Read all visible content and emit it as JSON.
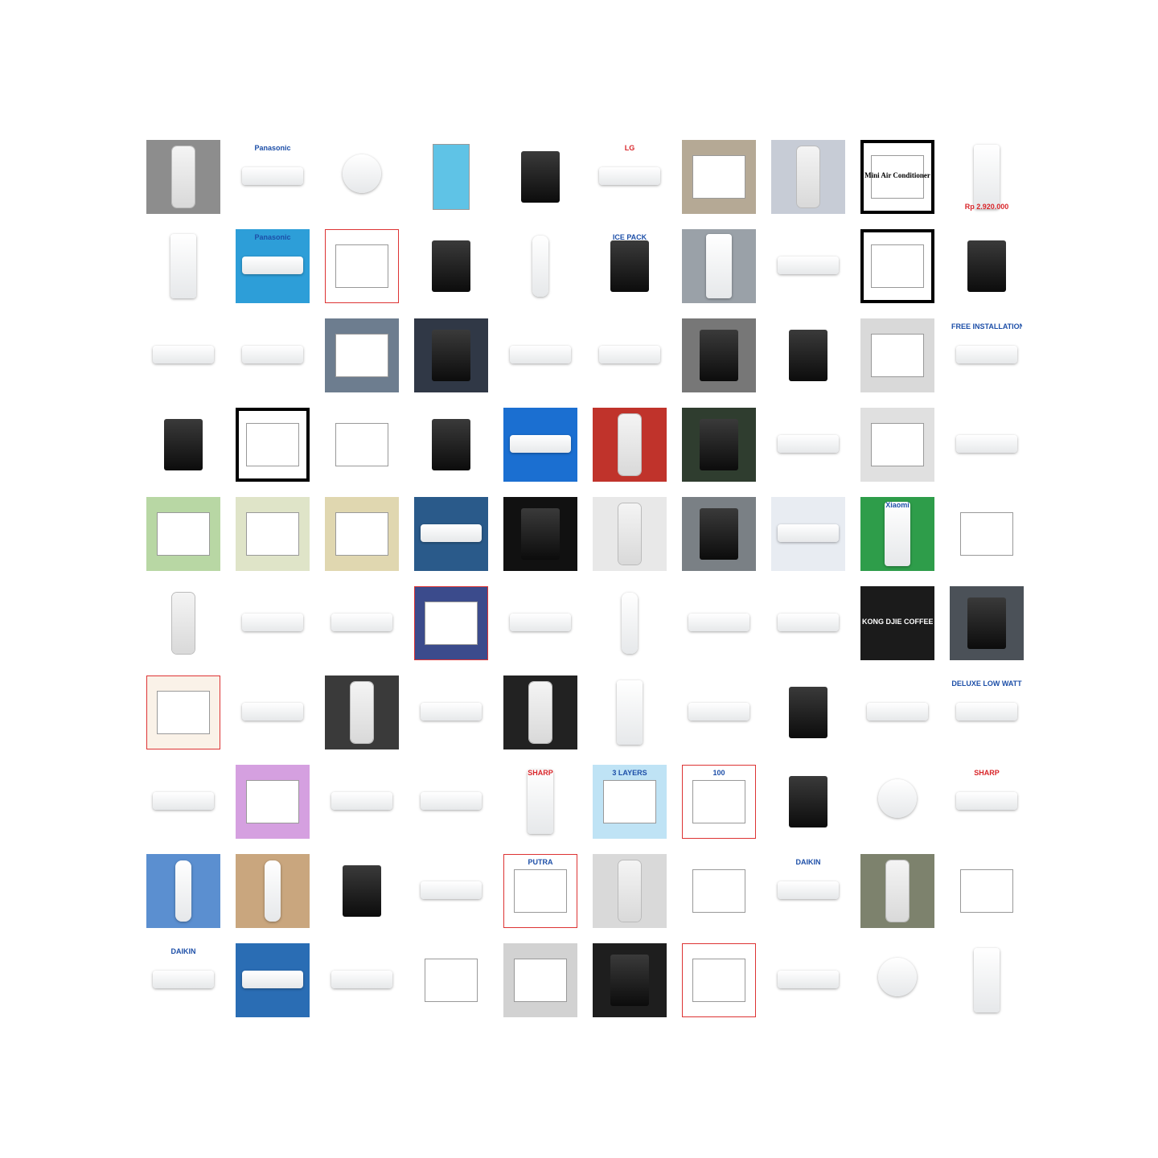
{
  "grid": {
    "rows": [
      {
        "cells": [
          {
            "name": "ac-remote",
            "bg": "#8d8d8d",
            "kind": "remote",
            "text": ""
          },
          {
            "name": "panasonic-ac",
            "bg": "#ffffff",
            "kind": "ac",
            "text": "Panasonic"
          },
          {
            "name": "handheld-fan",
            "bg": "#ffffff",
            "kind": "round",
            "text": ""
          },
          {
            "name": "mosquito-lamp",
            "bg": "#ffffff",
            "kind": "tower-blue",
            "text": ""
          },
          {
            "name": "mosquito-trap",
            "bg": "#ffffff",
            "kind": "dark",
            "text": ""
          },
          {
            "name": "lg-ac",
            "bg": "#ffffff",
            "kind": "ac",
            "text": "LG"
          },
          {
            "name": "ac-boxes",
            "bg": "#b5a995",
            "kind": "box",
            "text": ""
          },
          {
            "name": "remote-closeup",
            "bg": "#c7ccd6",
            "kind": "remote",
            "text": ""
          },
          {
            "name": "mini-air-conditioner",
            "bg": "#ffffff",
            "kind": "framed",
            "text": "Mini Air Conditioner"
          },
          {
            "name": "lg-fridge-promo",
            "bg": "#ffffff",
            "kind": "fridge",
            "text": "Rp 2.920.000"
          }
        ]
      },
      {
        "cells": [
          {
            "name": "showcase-fridge",
            "bg": "#ffffff",
            "kind": "tower",
            "text": ""
          },
          {
            "name": "panasonic-ac-2",
            "bg": "#2d9ed8",
            "kind": "ac",
            "text": "Panasonic"
          },
          {
            "name": "ac-spec-sheet",
            "bg": "#ffffff",
            "kind": "doc",
            "text": ""
          },
          {
            "name": "gun-alarm-clock",
            "bg": "#ffffff",
            "kind": "dark",
            "text": ""
          },
          {
            "name": "bottle",
            "bg": "#ffffff",
            "kind": "bottle",
            "text": ""
          },
          {
            "name": "ice-pack-cooler",
            "bg": "#ffffff",
            "kind": "dark",
            "text": "ICE PACK"
          },
          {
            "name": "cabinet",
            "bg": "#9aa1a8",
            "kind": "tower",
            "text": ""
          },
          {
            "name": "ac-unit",
            "bg": "#ffffff",
            "kind": "ac",
            "text": ""
          },
          {
            "name": "air-purifiers",
            "bg": "#ffffff",
            "kind": "framed",
            "text": ""
          },
          {
            "name": "black-fridge",
            "bg": "#ffffff",
            "kind": "dark",
            "text": ""
          }
        ]
      },
      {
        "cells": [
          {
            "name": "ac-unit-2",
            "bg": "#ffffff",
            "kind": "ac",
            "text": ""
          },
          {
            "name": "ac-unit-3",
            "bg": "#ffffff",
            "kind": "ac",
            "text": ""
          },
          {
            "name": "remotes-pack",
            "bg": "#6d7d8f",
            "kind": "box",
            "text": ""
          },
          {
            "name": "ac-parts",
            "bg": "#303846",
            "kind": "dark",
            "text": ""
          },
          {
            "name": "ac-unit-4",
            "bg": "#ffffff",
            "kind": "ac",
            "text": ""
          },
          {
            "name": "ac-design",
            "bg": "#ffffff",
            "kind": "ac",
            "text": ""
          },
          {
            "name": "thermostat",
            "bg": "#777777",
            "kind": "dark",
            "text": ""
          },
          {
            "name": "dispenser",
            "bg": "#ffffff",
            "kind": "dark",
            "text": ""
          },
          {
            "name": "room",
            "bg": "#d9d9d9",
            "kind": "box",
            "text": ""
          },
          {
            "name": "free-installation",
            "bg": "#ffffff",
            "kind": "ac",
            "text": "FREE INSTALLATION"
          }
        ]
      },
      {
        "cells": [
          {
            "name": "battery-charger",
            "bg": "#ffffff",
            "kind": "dark",
            "text": ""
          },
          {
            "name": "portable-cooler",
            "bg": "#ffffff",
            "kind": "framed",
            "text": ""
          },
          {
            "name": "ac-box-red",
            "bg": "#ffffff",
            "kind": "box",
            "text": ""
          },
          {
            "name": "black-fridge-2",
            "bg": "#ffffff",
            "kind": "dark",
            "text": ""
          },
          {
            "name": "ac-brochure",
            "bg": "#1b6fd1",
            "kind": "ac",
            "text": ""
          },
          {
            "name": "ac-remote-pack",
            "bg": "#c0332b",
            "kind": "remote",
            "text": ""
          },
          {
            "name": "chalkboard",
            "bg": "#2f3d2f",
            "kind": "dark",
            "text": ""
          },
          {
            "name": "ac-unit-5",
            "bg": "#ffffff",
            "kind": "ac",
            "text": ""
          },
          {
            "name": "filter-tray",
            "bg": "#e0e0e0",
            "kind": "box",
            "text": ""
          },
          {
            "name": "ac-unit-6",
            "bg": "#ffffff",
            "kind": "ac",
            "text": ""
          }
        ]
      },
      {
        "cells": [
          {
            "name": "phone-case",
            "bg": "#b8d7a4",
            "kind": "box",
            "text": ""
          },
          {
            "name": "bag",
            "bg": "#dfe4c8",
            "kind": "box",
            "text": ""
          },
          {
            "name": "control-panel",
            "bg": "#e0d7b0",
            "kind": "box",
            "text": ""
          },
          {
            "name": "ac-in-box",
            "bg": "#2a5a8a",
            "kind": "ac",
            "text": ""
          },
          {
            "name": "cube-shelf",
            "bg": "#111111",
            "kind": "dark",
            "text": ""
          },
          {
            "name": "wall-device",
            "bg": "#e8e8e8",
            "kind": "remote",
            "text": ""
          },
          {
            "name": "ac-install",
            "bg": "#7a8085",
            "kind": "dark",
            "text": ""
          },
          {
            "name": "ac-stock",
            "bg": "#e8ecf2",
            "kind": "ac",
            "text": ""
          },
          {
            "name": "xiaomi-purifier",
            "bg": "#2e9d4a",
            "kind": "tower",
            "text": "Xiaomi"
          },
          {
            "name": "contactor",
            "bg": "#ffffff",
            "kind": "box",
            "text": ""
          }
        ]
      },
      {
        "cells": [
          {
            "name": "remote-in-hand",
            "bg": "#ffffff",
            "kind": "remote",
            "text": ""
          },
          {
            "name": "ac-unit-7",
            "bg": "#ffffff",
            "kind": "ac",
            "text": ""
          },
          {
            "name": "ac-unit-blue",
            "bg": "#ffffff",
            "kind": "ac",
            "text": ""
          },
          {
            "name": "poster",
            "bg": "#3b4b8c",
            "kind": "doc",
            "text": ""
          },
          {
            "name": "ac-unit-8",
            "bg": "#ffffff",
            "kind": "ac",
            "text": ""
          },
          {
            "name": "spray-bottle",
            "bg": "#ffffff",
            "kind": "bottle",
            "text": ""
          },
          {
            "name": "ac-unit-9",
            "bg": "#ffffff",
            "kind": "ac",
            "text": ""
          },
          {
            "name": "ac-unit-10",
            "bg": "#ffffff",
            "kind": "ac",
            "text": ""
          },
          {
            "name": "kong-djie-coffee",
            "bg": "#1b1b1b",
            "kind": "sign",
            "text": "KONG DJIE COFFEE"
          },
          {
            "name": "battery-pack",
            "bg": "#4b5158",
            "kind": "dark",
            "text": ""
          }
        ]
      },
      {
        "cells": [
          {
            "name": "product-sheet",
            "bg": "#faf2e8",
            "kind": "doc",
            "text": ""
          },
          {
            "name": "ac-unit-11",
            "bg": "#ffffff",
            "kind": "ac",
            "text": ""
          },
          {
            "name": "remote-tall",
            "bg": "#3a3a3a",
            "kind": "remote",
            "text": ""
          },
          {
            "name": "ac-unit-12",
            "bg": "#ffffff",
            "kind": "ac",
            "text": ""
          },
          {
            "name": "remote-dark-bg",
            "bg": "#222222",
            "kind": "remote",
            "text": ""
          },
          {
            "name": "tower-ac",
            "bg": "#ffffff",
            "kind": "tower",
            "text": ""
          },
          {
            "name": "ac-unit-13",
            "bg": "#ffffff",
            "kind": "ac",
            "text": ""
          },
          {
            "name": "remote-dark",
            "bg": "#ffffff",
            "kind": "dark",
            "text": ""
          },
          {
            "name": "ac-unit-14",
            "bg": "#ffffff",
            "kind": "ac",
            "text": ""
          },
          {
            "name": "deluxe-low-watt",
            "bg": "#ffffff",
            "kind": "ac",
            "text": "DELUXE LOW WATT"
          }
        ]
      },
      {
        "cells": [
          {
            "name": "ac-unit-15",
            "bg": "#ffffff",
            "kind": "ac",
            "text": ""
          },
          {
            "name": "mini-fans",
            "bg": "#d5a0e0",
            "kind": "box",
            "text": ""
          },
          {
            "name": "ac-unit-16",
            "bg": "#ffffff",
            "kind": "ac",
            "text": ""
          },
          {
            "name": "ac-unit-17",
            "bg": "#ffffff",
            "kind": "ac",
            "text": ""
          },
          {
            "name": "sharp-portable",
            "bg": "#ffffff",
            "kind": "tower",
            "text": "SHARP"
          },
          {
            "name": "masks",
            "bg": "#bfe3f5",
            "kind": "box",
            "text": "3 LAYERS"
          },
          {
            "name": "mask-ad",
            "bg": "#ffffff",
            "kind": "doc",
            "text": "100"
          },
          {
            "name": "multimeter",
            "bg": "#ffffff",
            "kind": "dark",
            "text": ""
          },
          {
            "name": "wall-fan",
            "bg": "#ffffff",
            "kind": "round",
            "text": ""
          },
          {
            "name": "sharp-ac",
            "bg": "#ffffff",
            "kind": "ac",
            "text": "SHARP"
          }
        ]
      },
      {
        "cells": [
          {
            "name": "water-bottle",
            "bg": "#5b8fd0",
            "kind": "bottle",
            "text": ""
          },
          {
            "name": "sanitizer-bottle",
            "bg": "#c9a67e",
            "kind": "bottle",
            "text": ""
          },
          {
            "name": "clamp-meter",
            "bg": "#ffffff",
            "kind": "dark",
            "text": ""
          },
          {
            "name": "ac-promo",
            "bg": "#ffffff",
            "kind": "ac",
            "text": ""
          },
          {
            "name": "putra-ad",
            "bg": "#ffffff",
            "kind": "doc",
            "text": "PUTRA"
          },
          {
            "name": "remote-gray",
            "bg": "#d9d9d9",
            "kind": "remote",
            "text": ""
          },
          {
            "name": "stickers",
            "bg": "#ffffff",
            "kind": "box",
            "text": ""
          },
          {
            "name": "daikin-ac",
            "bg": "#ffffff",
            "kind": "ac",
            "text": "DAIKIN"
          },
          {
            "name": "remotes-green",
            "bg": "#7d826d",
            "kind": "remote",
            "text": ""
          },
          {
            "name": "tablet-in-hand",
            "bg": "#ffffff",
            "kind": "box",
            "text": ""
          }
        ]
      },
      {
        "cells": [
          {
            "name": "daikin-ac-2",
            "bg": "#ffffff",
            "kind": "ac",
            "text": "DAIKIN"
          },
          {
            "name": "ac-refund-promo",
            "bg": "#2a6db4",
            "kind": "ac",
            "text": ""
          },
          {
            "name": "split-ac",
            "bg": "#ffffff",
            "kind": "ac",
            "text": ""
          },
          {
            "name": "phone-case-2",
            "bg": "#ffffff",
            "kind": "box",
            "text": ""
          },
          {
            "name": "white-boxes",
            "bg": "#d2d2d2",
            "kind": "box",
            "text": ""
          },
          {
            "name": "watch-ad",
            "bg": "#1e1e1e",
            "kind": "dark",
            "text": ""
          },
          {
            "name": "glove-sheet",
            "bg": "#ffffff",
            "kind": "doc",
            "text": ""
          },
          {
            "name": "ac-unit-18",
            "bg": "#ffffff",
            "kind": "ac",
            "text": ""
          },
          {
            "name": "blue-device",
            "bg": "#ffffff",
            "kind": "round",
            "text": ""
          },
          {
            "name": "portable-ac",
            "bg": "#ffffff",
            "kind": "tower",
            "text": ""
          }
        ]
      }
    ]
  }
}
